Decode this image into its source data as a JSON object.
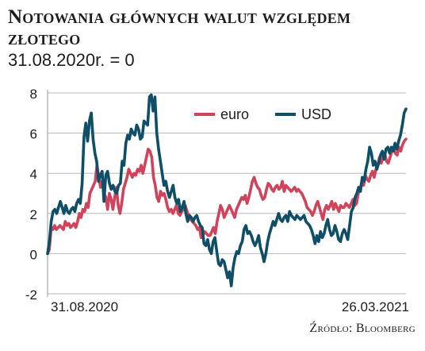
{
  "header": {
    "title": "Notowania głównych walut względem złotego",
    "subtitle": "31.08.2020r. = 0"
  },
  "source": "Źródło: Bloomberg",
  "chart_data": {
    "type": "line",
    "title": "Notowania głównych walut względem złotego",
    "subtitle": "31.08.2020r. = 0",
    "xlabel": "",
    "ylabel": "",
    "ylim": [
      -2,
      8
    ],
    "yticks": [
      "-2",
      "0",
      "2",
      "4",
      "6",
      "8"
    ],
    "x_range": [
      "31.08.2020",
      "26.03.2021"
    ],
    "x_tick_labels": [
      "31.08.2020",
      "26.03.2021"
    ],
    "grid": "horizontal",
    "legend_position": "top-right",
    "series": [
      {
        "name": "euro",
        "color": "#d0435a",
        "values": [
          0,
          0.2,
          1.3,
          1.2,
          1.4,
          1.2,
          1.3,
          1.4,
          1.3,
          1.2,
          1.6,
          1.4,
          1.5,
          1.3,
          1.4,
          1.5,
          1.3,
          1.6,
          2.0,
          1.8,
          2.2,
          2.1,
          2.5,
          2.3,
          3.0,
          3.2,
          3.4,
          3.6,
          4.4,
          3.8,
          3.3,
          3.6,
          3.0,
          2.8,
          2.2,
          3.0,
          2.7,
          2.2,
          2.8,
          3.3,
          2.4,
          2.0,
          2.5,
          3.2,
          3.5,
          3.8,
          4.2,
          4.0,
          3.8,
          4.0,
          3.9,
          4.2,
          4.1,
          4.4,
          4.0,
          4.4,
          4.8,
          5.2,
          5.1,
          4.8,
          3.8,
          3.4,
          2.8,
          2.6,
          3.1,
          2.9,
          3.0,
          2.7,
          2.3,
          2.1,
          2.2,
          2.0,
          2.2,
          2.4,
          2.0,
          1.9,
          2.1,
          2.2,
          2.4,
          2.1,
          1.9,
          1.7,
          1.6,
          1.5,
          1.4,
          1.2,
          1.3,
          0.8,
          0.9,
          1.1,
          1.0,
          0.9,
          0.9,
          1.1,
          1.3,
          1.0,
          1.6,
          2.0,
          2.4,
          2.2,
          1.8,
          2.0,
          2.2,
          2.4,
          2.2,
          2.0,
          1.8,
          2.2,
          2.4,
          2.6,
          2.8,
          2.7,
          2.9,
          2.5,
          2.8,
          3.2,
          3.6,
          3.8,
          3.5,
          3.3,
          3.2,
          2.9,
          2.7,
          2.8,
          3.2,
          3.5,
          3.4,
          3.2,
          3.1,
          3.3,
          3.4,
          3.2,
          3.3,
          3.6,
          3.1,
          3.4,
          3.3,
          3.2,
          3.1,
          3.2,
          3.3,
          3.1,
          3.2,
          3.1,
          3.0,
          2.8,
          2.6,
          2.3,
          2.2,
          2.1,
          1.9,
          2.1,
          2.4,
          2.6,
          2.3,
          2.0,
          1.7,
          2.2,
          2.4,
          2.2,
          2.4,
          2.6,
          2.2,
          2.5,
          2.3,
          2.1,
          2.4,
          2.3,
          2.3,
          2.5,
          2.4,
          2.3,
          2.5,
          2.7,
          2.4,
          2.5,
          3.0,
          3.2,
          3.6,
          3.4,
          3.9,
          3.7,
          3.6,
          3.9,
          4.1,
          3.8,
          4.2,
          4.4,
          4.8,
          4.5,
          4.8,
          5.0,
          4.6,
          4.5,
          4.8,
          5.1,
          5.3,
          5.0,
          4.9,
          5.3,
          5.1,
          5.4,
          5.6,
          5.7
        ]
      },
      {
        "name": "USD",
        "color": "#0e4f67",
        "values": [
          0,
          0.6,
          1.6,
          2.1,
          2.2,
          2.0,
          2.3,
          2.6,
          2.3,
          2.0,
          2.4,
          2.1,
          2.0,
          2.2,
          2.3,
          2.1,
          2.5,
          2.7,
          2.5,
          3.5,
          5.8,
          6.5,
          5.6,
          6.6,
          7.0,
          5.7,
          5.0,
          4.6,
          3.6,
          3.9,
          4.1,
          2.6,
          3.9,
          4.1,
          3.5,
          3.2,
          3.4,
          3.1,
          3.0,
          3.4,
          3.5,
          4.6,
          4.4,
          5.5,
          5.9,
          5.7,
          6.2,
          6.0,
          5.9,
          6.4,
          6.2,
          5.7,
          5.8,
          6.6,
          6.5,
          6.4,
          7.8,
          7.9,
          7.1,
          7.8,
          6.0,
          5.2,
          4.6,
          4.0,
          3.4,
          3.6,
          3.1,
          2.8,
          3.1,
          3.4,
          2.8,
          2.5,
          2.7,
          2.1,
          2.3,
          2.6,
          2.0,
          1.6,
          1.9,
          1.8,
          1.6,
          1.8,
          1.9,
          1.6,
          1.4,
          1.3,
          0.5,
          0.4,
          0.7,
          0.2,
          0.0,
          0.6,
          0.8,
          0.1,
          -0.5,
          -0.6,
          -0.3,
          -0.4,
          -0.8,
          -1.2,
          -0.9,
          -1.6,
          -0.7,
          -0.2,
          0.1,
          0.0,
          0.4,
          0.6,
          1.2,
          1.4,
          1.0,
          1.1,
          0.9,
          0.6,
          0.4,
          0.6,
          0.9,
          0.3,
          0.0,
          -0.4,
          0.0,
          0.6,
          1.0,
          1.3,
          1.6,
          1.4,
          1.7,
          2.0,
          1.7,
          1.6,
          1.8,
          1.9,
          1.6,
          2.1,
          1.9,
          1.8,
          1.7,
          1.9,
          1.8,
          1.7,
          1.8,
          1.9,
          1.6,
          1.5,
          1.4,
          1.2,
          0.9,
          0.5,
          0.9,
          0.6,
          1.1,
          0.8,
          1.0,
          1.4,
          1.7,
          1.2,
          0.9,
          1.0,
          1.4,
          1.1,
          0.7,
          0.6,
          1.0,
          1.2,
          1.0,
          0.7,
          1.4,
          2.1,
          2.3,
          2.8,
          3.0,
          3.3,
          3.1,
          3.8,
          3.6,
          4.2,
          4.6,
          5.3,
          5.0,
          4.4,
          4.6,
          4.2,
          4.5,
          4.9,
          5.1,
          4.7,
          5.2,
          5.3,
          5.0,
          5.3,
          5.1,
          5.5,
          5.2,
          5.6,
          5.9,
          6.4,
          7.0,
          7.2
        ]
      }
    ]
  }
}
